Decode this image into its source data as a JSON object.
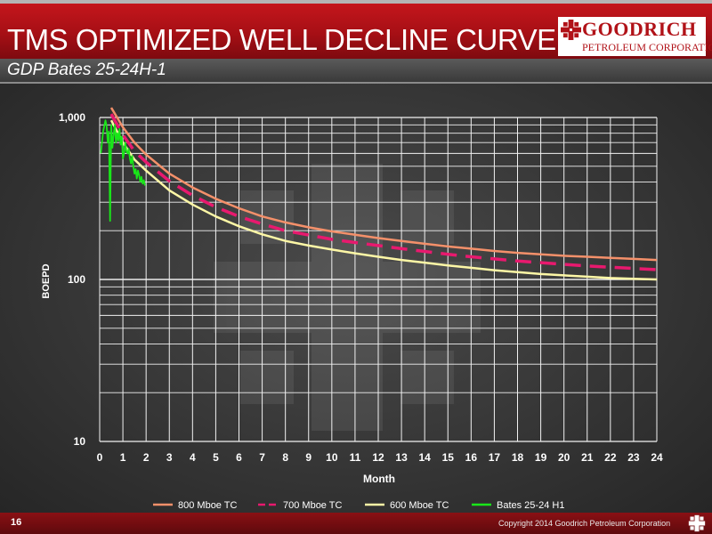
{
  "header": {
    "title": "TMS OPTIMIZED WELL DECLINE CURVE"
  },
  "logo": {
    "name": "GOODRICH",
    "sub": "PETROLEUM CORPORATION"
  },
  "subtitle": "GDP Bates 25-24H-1",
  "footer": {
    "page_number": "16",
    "copyright": "Copyright 2014 Goodrich Petroleum Corporation"
  },
  "colors": {
    "header_red": "#c4161c",
    "tc800": "#f4906a",
    "tc700": "#e8196e",
    "tc600": "#fdf7a6",
    "bates": "#19e619"
  },
  "chart_data": {
    "type": "line",
    "xlabel": "Month",
    "ylabel": "BOEPD",
    "xlim": [
      0,
      24
    ],
    "ylim": [
      10,
      1000
    ],
    "yscale": "log",
    "x_ticks": [
      0,
      1,
      2,
      3,
      4,
      5,
      6,
      7,
      8,
      9,
      10,
      11,
      12,
      13,
      14,
      15,
      16,
      17,
      18,
      19,
      20,
      21,
      22,
      23,
      24
    ],
    "y_ticks": [
      10,
      100,
      1000
    ],
    "y_tick_labels": [
      "10",
      "100",
      "1,000"
    ],
    "grid": true,
    "legend_position": "bottom",
    "series": [
      {
        "name": "800 Mboe TC",
        "style": "solid",
        "color": "#f4906a",
        "x": [
          0.5,
          1,
          1.5,
          2,
          3,
          4,
          5,
          6,
          7,
          8,
          9,
          10,
          11,
          12,
          13,
          14,
          15,
          16,
          17,
          18,
          19,
          20,
          21,
          22,
          23,
          24
        ],
        "y": [
          1150,
          870,
          700,
          590,
          450,
          370,
          315,
          275,
          245,
          225,
          210,
          198,
          189,
          180,
          173,
          166,
          160,
          155,
          150,
          146,
          143,
          140,
          138,
          136,
          134,
          132
        ]
      },
      {
        "name": "700 Mboe TC",
        "style": "dashed",
        "color": "#e8196e",
        "x": [
          0.5,
          1,
          1.5,
          2,
          3,
          4,
          5,
          6,
          7,
          8,
          9,
          10,
          11,
          12,
          13,
          14,
          15,
          16,
          17,
          18,
          19,
          20,
          21,
          22,
          23,
          24
        ],
        "y": [
          1050,
          780,
          620,
          530,
          405,
          330,
          280,
          245,
          220,
          200,
          188,
          177,
          169,
          162,
          155,
          149,
          143,
          138,
          134,
          130,
          127,
          124,
          121,
          119,
          117,
          115
        ]
      },
      {
        "name": "600 Mboe TC",
        "style": "solid",
        "color": "#fdf7a6",
        "x": [
          0.5,
          1,
          1.5,
          2,
          3,
          4,
          5,
          6,
          7,
          8,
          9,
          10,
          11,
          12,
          13,
          14,
          15,
          16,
          17,
          18,
          19,
          20,
          21,
          22,
          23,
          24
        ],
        "y": [
          960,
          700,
          550,
          470,
          355,
          290,
          245,
          213,
          190,
          173,
          162,
          153,
          145,
          138,
          132,
          127,
          122,
          118,
          114,
          111,
          108,
          106,
          104,
          102,
          101,
          100
        ]
      },
      {
        "name": "Bates 25-24 H1",
        "style": "solid",
        "color": "#19e619",
        "x": [
          0.05,
          0.15,
          0.25,
          0.3,
          0.35,
          0.4,
          0.45,
          0.5,
          0.55,
          0.6,
          0.65,
          0.7,
          0.75,
          0.8,
          0.85,
          0.9,
          0.95,
          1.0,
          1.05,
          1.1,
          1.15,
          1.2,
          1.25,
          1.3,
          1.35,
          1.4,
          1.45,
          1.5,
          1.55,
          1.6,
          1.65,
          1.7,
          1.75,
          1.8,
          1.85,
          1.9,
          1.95
        ],
        "y": [
          600,
          820,
          960,
          880,
          700,
          820,
          230,
          900,
          650,
          780,
          900,
          700,
          800,
          720,
          850,
          680,
          760,
          560,
          600,
          700,
          620,
          600,
          640,
          560,
          520,
          580,
          500,
          450,
          480,
          420,
          470,
          440,
          400,
          430,
          390,
          410,
          380
        ]
      }
    ]
  }
}
